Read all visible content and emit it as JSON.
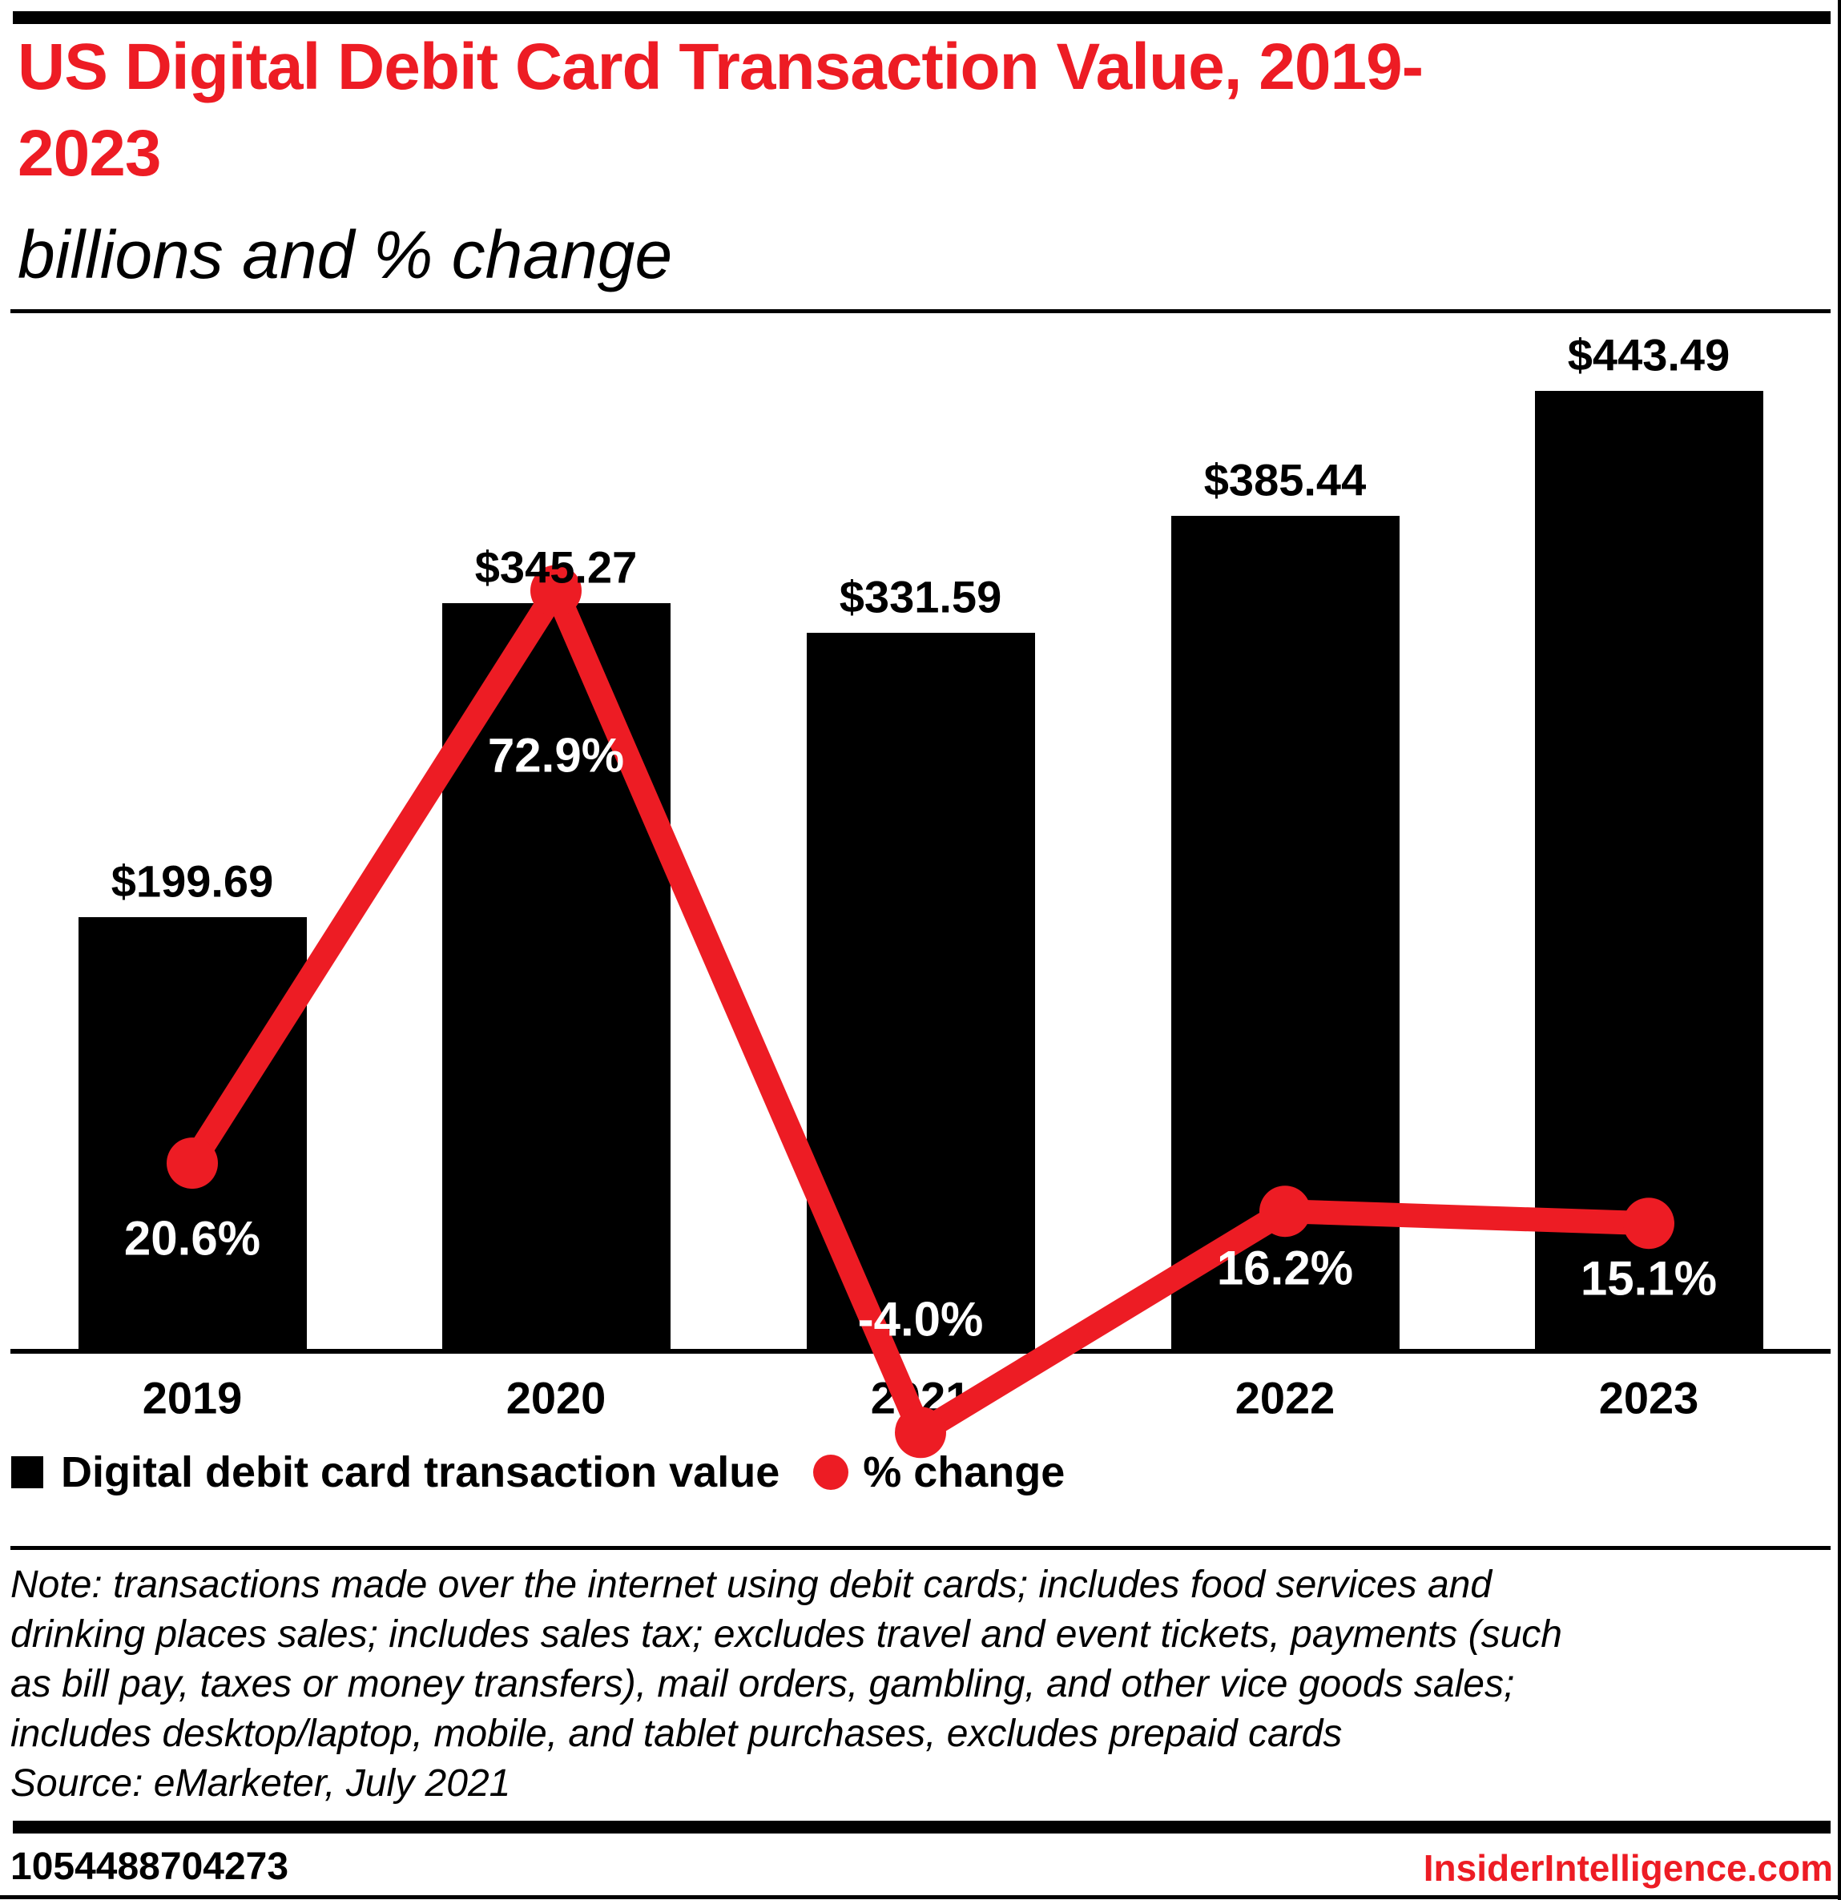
{
  "header": {
    "title_line1": "US Digital Debit Card Transaction Value, 2019-",
    "title_line2": "2023",
    "subtitle": "billions and % change"
  },
  "chart_data": {
    "type": "bar",
    "subtype": "bar-with-line-overlay",
    "categories": [
      "2019",
      "2020",
      "2021",
      "2022",
      "2023"
    ],
    "series": [
      {
        "name": "Digital debit card transaction value",
        "type": "bar",
        "unit": "billions of US dollars",
        "values": [
          199.69,
          345.27,
          331.59,
          385.44,
          443.49
        ],
        "labels": [
          "$199.69",
          "$345.27",
          "$331.59",
          "$385.44",
          "$443.49"
        ]
      },
      {
        "name": "% change",
        "type": "line",
        "unit": "percent",
        "values": [
          20.6,
          72.9,
          -4.0,
          16.2,
          15.1
        ],
        "labels": [
          "20.6%",
          "72.9%",
          "-4.0%",
          "16.2%",
          "15.1%"
        ]
      }
    ],
    "title": "US Digital Debit Card Transaction Value, 2019-2023",
    "subtitle": "billions and % change",
    "xlabel": "",
    "ylabel": "",
    "grid": false,
    "legend_position": "bottom",
    "colors": {
      "bar": "#000000",
      "line": "#ed1c24",
      "bar_label": "#000000",
      "pct_label": "#ffffff"
    }
  },
  "legend": {
    "bars_label": "Digital debit card transaction value",
    "line_label": "% change"
  },
  "note": {
    "lines": [
      "Note: transactions made over the internet using debit cards; includes food services and",
      "drinking places sales; includes sales tax; excludes travel and event tickets, payments (such",
      "as bill pay, taxes or money transfers), mail orders, gambling, and other vice goods sales;",
      "includes desktop/laptop, mobile, and tablet purchases, excludes prepaid cards"
    ],
    "source": "Source: eMarketer, July 2021"
  },
  "footer": {
    "left_id": "1054488704273",
    "right_site": "InsiderIntelligence.com"
  }
}
